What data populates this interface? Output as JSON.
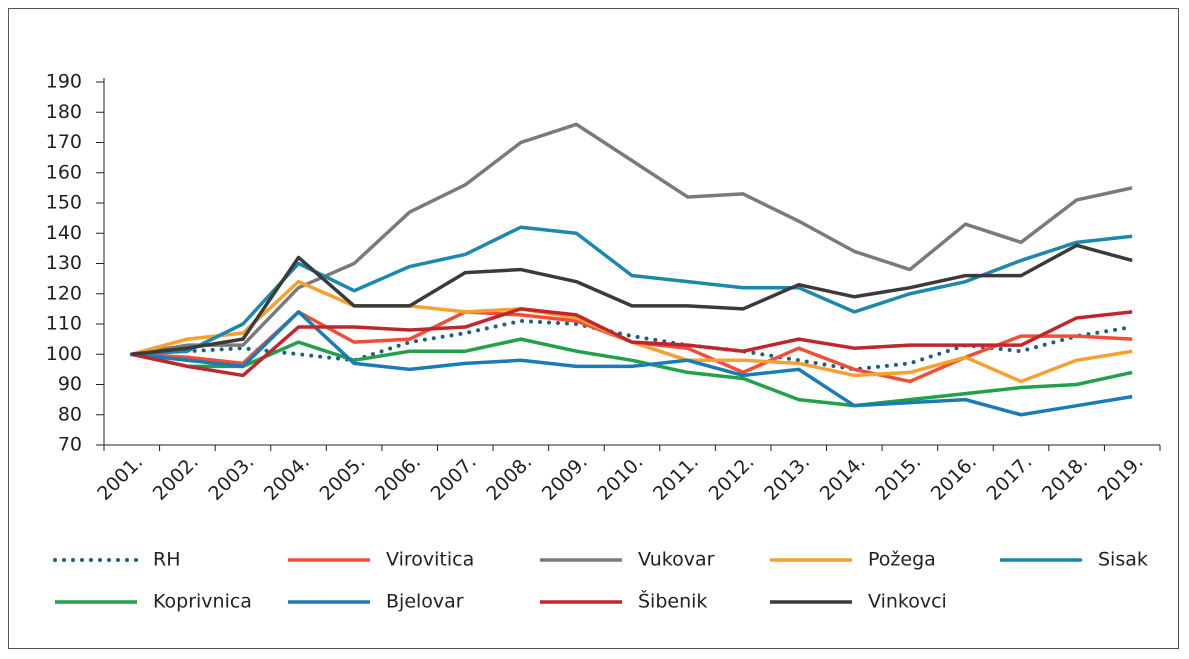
{
  "chart_data": {
    "type": "line",
    "categories": [
      "2001.",
      "2002.",
      "2003.",
      "2004.",
      "2005.",
      "2006.",
      "2007.",
      "2008.",
      "2009.",
      "2010.",
      "2011.",
      "2012.",
      "2013.",
      "2014.",
      "2015.",
      "2016.",
      "2017.",
      "2018.",
      "2019."
    ],
    "ylim": [
      70,
      190
    ],
    "yticks": [
      70,
      80,
      90,
      100,
      110,
      120,
      130,
      140,
      150,
      160,
      170,
      180,
      190
    ],
    "series": [
      {
        "name": "RH",
        "color": "#1d5f7e",
        "style": "dotted",
        "values": [
          100,
          101,
          102,
          100,
          98,
          104,
          107,
          111,
          110,
          106,
          103,
          101,
          98,
          95,
          97,
          103,
          101,
          106,
          109
        ]
      },
      {
        "name": "Virovitica",
        "color": "#f04e37",
        "values": [
          100,
          99,
          97,
          114,
          104,
          105,
          114,
          113,
          111,
          104,
          102,
          94,
          102,
          95,
          91,
          99,
          106,
          106,
          105
        ]
      },
      {
        "name": "Vukovar",
        "color": "#7a7a7a",
        "values": [
          100,
          103,
          103,
          122,
          130,
          147,
          156,
          170,
          176,
          164,
          152,
          153,
          144,
          134,
          128,
          143,
          137,
          151,
          155
        ]
      },
      {
        "name": "Požega",
        "color": "#f7a030",
        "values": [
          100,
          105,
          107,
          124,
          116,
          116,
          114,
          115,
          112,
          104,
          98,
          98,
          97,
          93,
          94,
          99,
          91,
          98,
          101
        ]
      },
      {
        "name": "Sisak",
        "color": "#1b88ad",
        "values": [
          100,
          101,
          110,
          130,
          121,
          129,
          133,
          142,
          140,
          126,
          124,
          122,
          122,
          114,
          120,
          124,
          131,
          137,
          139
        ]
      },
      {
        "name": "Koprivnica",
        "color": "#22a04a",
        "values": [
          100,
          96,
          96,
          104,
          98,
          101,
          101,
          105,
          101,
          98,
          94,
          92,
          85,
          83,
          85,
          87,
          89,
          90,
          94
        ]
      },
      {
        "name": "Bjelovar",
        "color": "#1a7cb6",
        "values": [
          100,
          98,
          96,
          114,
          97,
          95,
          97,
          98,
          96,
          96,
          98,
          93,
          95,
          83,
          84,
          85,
          80,
          83,
          86
        ]
      },
      {
        "name": "Šibenik",
        "color": "#c0272d",
        "values": [
          100,
          96,
          93,
          109,
          109,
          108,
          109,
          115,
          113,
          104,
          103,
          101,
          105,
          102,
          103,
          103,
          103,
          112,
          114
        ]
      },
      {
        "name": "Vinkovci",
        "color": "#3a3a3a",
        "values": [
          100,
          102,
          105,
          132,
          116,
          116,
          127,
          128,
          124,
          116,
          116,
          115,
          123,
          119,
          122,
          126,
          126,
          136,
          131
        ]
      }
    ]
  }
}
